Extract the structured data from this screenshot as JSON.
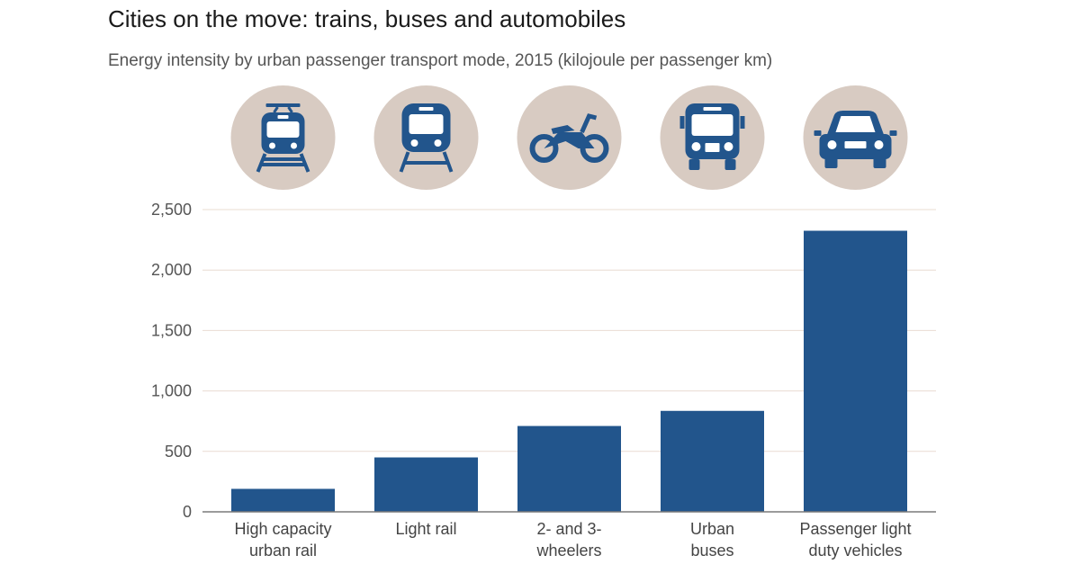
{
  "title": "Cities on the move: trains, buses and automobiles",
  "subtitle": "Energy intensity by urban passenger transport mode, 2015 (kilojoule per passenger km)",
  "colors": {
    "bar": "#22558c",
    "icon_bg": "#d8cbc2",
    "grid": "#e9dcd2",
    "axis": "#7a7a7a"
  },
  "chart_data": {
    "type": "bar",
    "title": "Cities on the move: trains, buses and automobiles",
    "subtitle": "Energy intensity by urban passenger transport mode, 2015 (kilojoule per passenger km)",
    "xlabel": "",
    "ylabel": "",
    "categories": [
      [
        "High capacity",
        "urban rail"
      ],
      [
        "Light rail"
      ],
      [
        "2- and 3-",
        "wheelers"
      ],
      [
        "Urban",
        "buses"
      ],
      [
        "Passenger light",
        "duty vehicles"
      ]
    ],
    "category_icons": [
      "tram-icon",
      "train-icon",
      "motorcycle-icon",
      "bus-icon",
      "car-icon"
    ],
    "values": [
      190,
      450,
      710,
      835,
      2325
    ],
    "ylim": [
      0,
      2500
    ],
    "yticks": [
      0,
      500,
      1000,
      1500,
      2000,
      2500
    ],
    "ytick_labels": [
      "0",
      "500",
      "1,000",
      "1,500",
      "2,000",
      "2,500"
    ],
    "grid": true
  }
}
